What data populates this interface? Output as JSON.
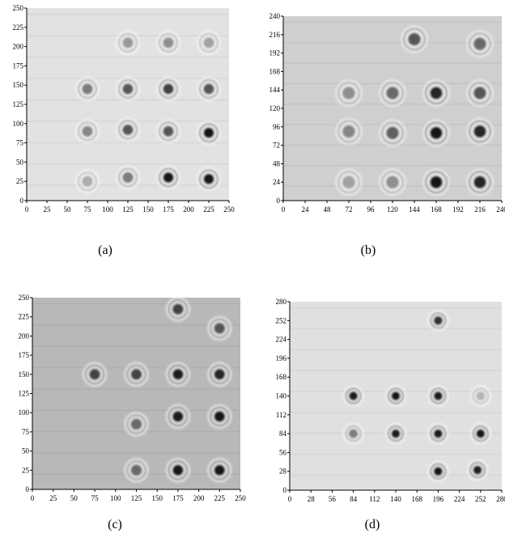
{
  "chart_data": [
    {
      "type": "heatmap",
      "caption": "(a)",
      "xlim": [
        0,
        250
      ],
      "ylim": [
        0,
        250
      ],
      "xticks": [
        "0",
        "25",
        "50",
        "75",
        "100",
        "125",
        "150",
        "175",
        "200",
        "225",
        "250"
      ],
      "yticks": [
        "0",
        "25",
        "50",
        "75",
        "100",
        "125",
        "150",
        "175",
        "200",
        "225",
        "250"
      ],
      "background": "#e2e2e2",
      "spots": [
        {
          "x": 75,
          "y": 25,
          "intensity": 0.15
        },
        {
          "x": 125,
          "y": 30,
          "intensity": 0.4
        },
        {
          "x": 175,
          "y": 30,
          "intensity": 0.95
        },
        {
          "x": 225,
          "y": 28,
          "intensity": 0.95
        },
        {
          "x": 75,
          "y": 90,
          "intensity": 0.35
        },
        {
          "x": 125,
          "y": 92,
          "intensity": 0.6
        },
        {
          "x": 175,
          "y": 90,
          "intensity": 0.6
        },
        {
          "x": 225,
          "y": 88,
          "intensity": 0.95
        },
        {
          "x": 75,
          "y": 145,
          "intensity": 0.4
        },
        {
          "x": 125,
          "y": 145,
          "intensity": 0.6
        },
        {
          "x": 175,
          "y": 145,
          "intensity": 0.7
        },
        {
          "x": 225,
          "y": 145,
          "intensity": 0.6
        },
        {
          "x": 125,
          "y": 205,
          "intensity": 0.25
        },
        {
          "x": 175,
          "y": 205,
          "intensity": 0.3
        },
        {
          "x": 225,
          "y": 205,
          "intensity": 0.2
        }
      ]
    },
    {
      "type": "heatmap",
      "caption": "(b)",
      "xlim": [
        0,
        240
      ],
      "ylim": [
        0,
        240
      ],
      "xticks": [
        "0",
        "24",
        "48",
        "72",
        "96",
        "120",
        "144",
        "168",
        "192",
        "216",
        "240"
      ],
      "yticks": [
        "0",
        "24",
        "48",
        "72",
        "96",
        "120",
        "144",
        "168",
        "192",
        "216",
        "240"
      ],
      "background": "#cfcfcf",
      "spots": [
        {
          "x": 72,
          "y": 24,
          "intensity": 0.2
        },
        {
          "x": 120,
          "y": 24,
          "intensity": 0.3
        },
        {
          "x": 168,
          "y": 24,
          "intensity": 0.95
        },
        {
          "x": 216,
          "y": 24,
          "intensity": 0.85
        },
        {
          "x": 72,
          "y": 90,
          "intensity": 0.35
        },
        {
          "x": 120,
          "y": 88,
          "intensity": 0.55
        },
        {
          "x": 168,
          "y": 88,
          "intensity": 0.95
        },
        {
          "x": 216,
          "y": 90,
          "intensity": 0.85
        },
        {
          "x": 72,
          "y": 140,
          "intensity": 0.3
        },
        {
          "x": 120,
          "y": 140,
          "intensity": 0.5
        },
        {
          "x": 168,
          "y": 140,
          "intensity": 0.85
        },
        {
          "x": 216,
          "y": 140,
          "intensity": 0.6
        },
        {
          "x": 216,
          "y": 204,
          "intensity": 0.5
        },
        {
          "x": 144,
          "y": 210,
          "intensity": 0.6
        }
      ]
    },
    {
      "type": "heatmap",
      "caption": "(c)",
      "xlim": [
        0,
        250
      ],
      "ylim": [
        0,
        250
      ],
      "xticks": [
        "0",
        "25",
        "50",
        "75",
        "100",
        "125",
        "150",
        "175",
        "200",
        "225",
        "250"
      ],
      "yticks": [
        "0",
        "25",
        "50",
        "75",
        "100",
        "125",
        "150",
        "175",
        "200",
        "225",
        "250"
      ],
      "background": "#b8b8b8",
      "spots": [
        {
          "x": 125,
          "y": 25,
          "intensity": 0.5
        },
        {
          "x": 175,
          "y": 25,
          "intensity": 0.95
        },
        {
          "x": 225,
          "y": 25,
          "intensity": 0.95
        },
        {
          "x": 125,
          "y": 85,
          "intensity": 0.5
        },
        {
          "x": 175,
          "y": 95,
          "intensity": 0.9
        },
        {
          "x": 225,
          "y": 95,
          "intensity": 0.95
        },
        {
          "x": 75,
          "y": 150,
          "intensity": 0.7
        },
        {
          "x": 125,
          "y": 150,
          "intensity": 0.7
        },
        {
          "x": 175,
          "y": 150,
          "intensity": 0.9
        },
        {
          "x": 225,
          "y": 150,
          "intensity": 0.85
        },
        {
          "x": 225,
          "y": 210,
          "intensity": 0.6
        },
        {
          "x": 175,
          "y": 235,
          "intensity": 0.7
        }
      ]
    },
    {
      "type": "heatmap",
      "caption": "(d)",
      "xlim": [
        0,
        280
      ],
      "ylim": [
        0,
        280
      ],
      "xticks": [
        "0",
        "28",
        "56",
        "84",
        "112",
        "140",
        "168",
        "196",
        "224",
        "252",
        "280"
      ],
      "yticks": [
        "0",
        "28",
        "56",
        "84",
        "112",
        "140",
        "168",
        "196",
        "224",
        "252",
        "280"
      ],
      "background": "#e0e0e0",
      "spots": [
        {
          "x": 196,
          "y": 28,
          "intensity": 0.95
        },
        {
          "x": 248,
          "y": 30,
          "intensity": 0.9
        },
        {
          "x": 84,
          "y": 84,
          "intensity": 0.4
        },
        {
          "x": 140,
          "y": 84,
          "intensity": 0.9
        },
        {
          "x": 196,
          "y": 84,
          "intensity": 0.9
        },
        {
          "x": 252,
          "y": 84,
          "intensity": 0.95
        },
        {
          "x": 84,
          "y": 140,
          "intensity": 0.9
        },
        {
          "x": 140,
          "y": 140,
          "intensity": 0.95
        },
        {
          "x": 196,
          "y": 140,
          "intensity": 0.9
        },
        {
          "x": 252,
          "y": 140,
          "intensity": 0.1
        },
        {
          "x": 196,
          "y": 252,
          "intensity": 0.8
        }
      ]
    }
  ]
}
